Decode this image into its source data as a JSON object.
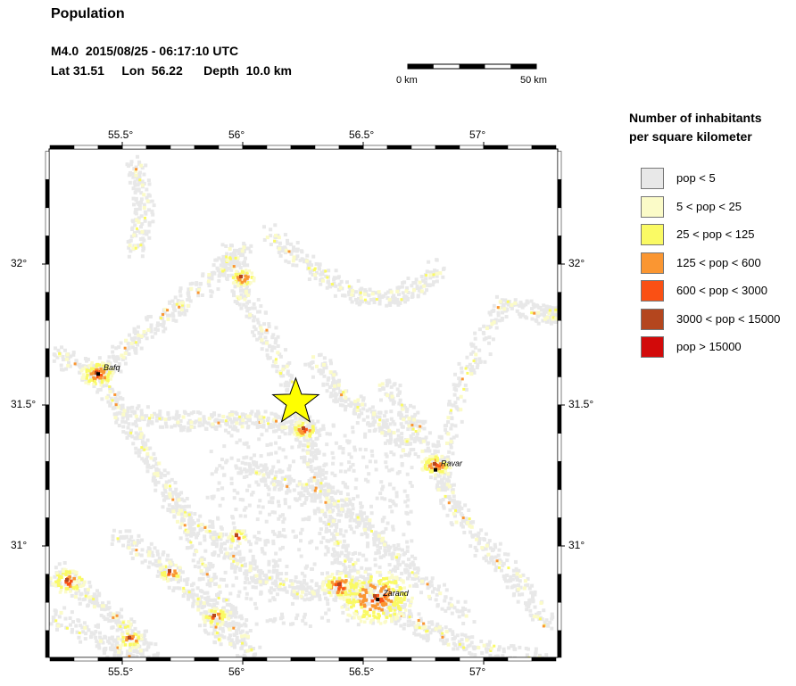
{
  "header": {
    "title": "Population",
    "event_line": "M4.0  2015/08/25 - 06:17:10 UTC",
    "location_line": "Lat 31.51     Lon  56.22      Depth  10.0 km"
  },
  "scale_bar": {
    "start_label": "0 km",
    "end_label": "50 km"
  },
  "map": {
    "lon_range": [
      55.2,
      57.3
    ],
    "lat_range": [
      30.6,
      32.4
    ],
    "lon_ticks": [
      {
        "value": 55.5,
        "label": "55.5°"
      },
      {
        "value": 56.0,
        "label": "56°"
      },
      {
        "value": 56.5,
        "label": "56.5°"
      },
      {
        "value": 57.0,
        "label": "57°"
      }
    ],
    "lat_ticks": [
      {
        "value": 31.0,
        "label": "31°"
      },
      {
        "value": 31.5,
        "label": "31.5°"
      },
      {
        "value": 32.0,
        "label": "32°"
      }
    ],
    "epicenter": {
      "lon": 56.22,
      "lat": 31.51,
      "color": "#ffff00"
    },
    "cities": [
      {
        "name": "Bafq",
        "lon": 55.4,
        "lat": 31.61
      },
      {
        "name": "Ravar",
        "lon": 56.8,
        "lat": 31.27
      },
      {
        "name": "Zarand",
        "lon": 56.56,
        "lat": 30.81
      }
    ]
  },
  "legend": {
    "title_line1": "Number of inhabitants",
    "title_line2": "per square kilometer",
    "items": [
      {
        "label": "pop < 5",
        "color": "#e8e8e8"
      },
      {
        "label": "5 < pop < 25",
        "color": "#fbfbc8"
      },
      {
        "label": "25 < pop < 125",
        "color": "#fafa64"
      },
      {
        "label": "125 < pop < 600",
        "color": "#fa9632"
      },
      {
        "label": "600 < pop < 3000",
        "color": "#fa5014"
      },
      {
        "label": "3000 < pop < 15000",
        "color": "#b4461e"
      },
      {
        "label": "pop > 15000",
        "color": "#d20a0a"
      }
    ]
  }
}
